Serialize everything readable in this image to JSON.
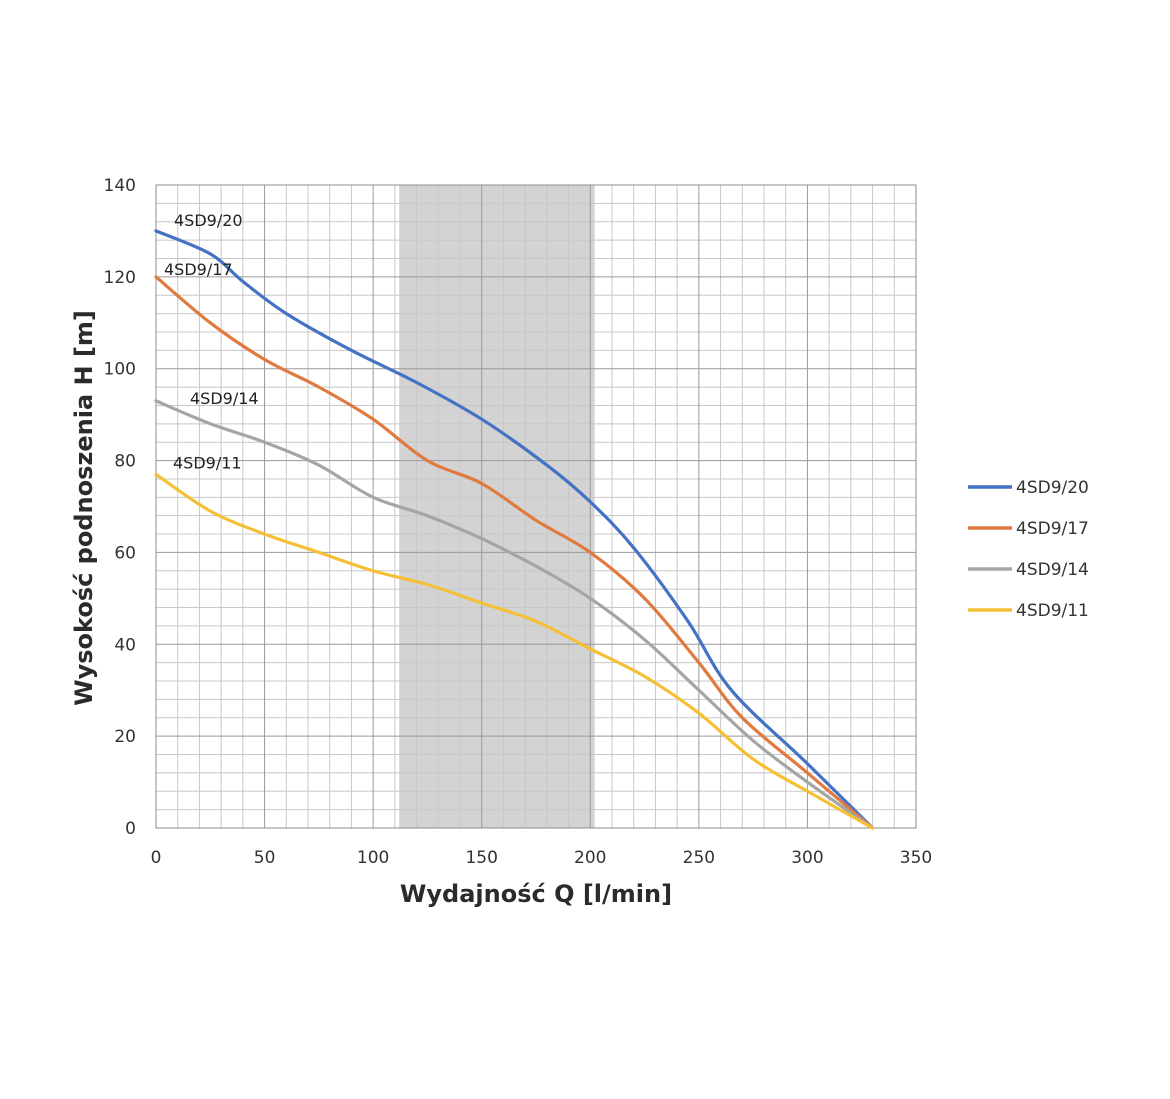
{
  "chart_data": {
    "type": "line",
    "title": "",
    "xlabel": "Wydajność Q [l/min]",
    "ylabel": "Wysokość podnoszenia H [m]",
    "xlim": [
      0,
      350
    ],
    "ylim": [
      0,
      140
    ],
    "x_ticks": [
      "0",
      "50",
      "100",
      "150",
      "200",
      "250",
      "300",
      "350"
    ],
    "y_ticks": [
      "0",
      "20",
      "40",
      "60",
      "80",
      "100",
      "120",
      "140"
    ],
    "grid": true,
    "highlight_range_x": [
      112,
      202
    ],
    "legend_position": "right",
    "series": [
      {
        "name": "4SD9/20",
        "color": "#4472c4",
        "x": [
          0,
          25,
          40,
          60,
          90,
          120,
          150,
          180,
          200,
          220,
          245,
          265,
          300,
          330
        ],
        "y": [
          130,
          125,
          119,
          112,
          104,
          97,
          89,
          79,
          71,
          61,
          45,
          30,
          14,
          0
        ]
      },
      {
        "name": "4SD9/17",
        "color": "#e07a3f",
        "x": [
          0,
          25,
          50,
          75,
          100,
          125,
          150,
          175,
          200,
          225,
          250,
          270,
          300,
          330
        ],
        "y": [
          120,
          110,
          102,
          96,
          89,
          80,
          75,
          67,
          60,
          50,
          36,
          24,
          12,
          0
        ]
      },
      {
        "name": "4SD9/14",
        "color": "#a5a5a5",
        "x": [
          0,
          25,
          50,
          75,
          100,
          125,
          150,
          175,
          200,
          225,
          250,
          275,
          300,
          330
        ],
        "y": [
          93,
          88,
          84,
          79,
          72,
          68,
          63,
          57,
          50,
          41,
          30,
          19,
          10,
          0
        ]
      },
      {
        "name": "4SD9/11",
        "color": "#f5c036",
        "x": [
          0,
          25,
          50,
          75,
          100,
          125,
          150,
          175,
          200,
          225,
          250,
          275,
          300,
          330
        ],
        "y": [
          77,
          69,
          64,
          60,
          56,
          53,
          49,
          45,
          39,
          33,
          25,
          15,
          8,
          0
        ]
      }
    ]
  }
}
